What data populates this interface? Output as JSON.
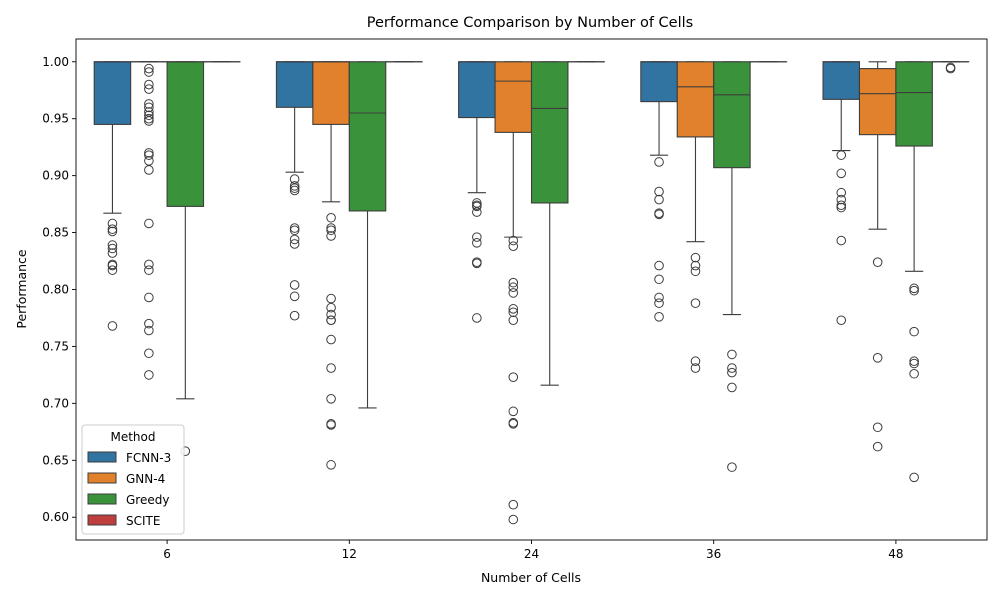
{
  "chart_data": {
    "type": "box",
    "title": "Performance Comparison by Number of Cells",
    "xlabel": "Number of Cells",
    "ylabel": "Performance",
    "ylim": [
      0.58,
      1.02
    ],
    "yticks": [
      0.6,
      0.65,
      0.7,
      0.75,
      0.8,
      0.85,
      0.9,
      0.95,
      1.0
    ],
    "ytick_labels": [
      "0.60",
      "0.65",
      "0.70",
      "0.75",
      "0.80",
      "0.85",
      "0.90",
      "0.95",
      "1.00"
    ],
    "categories": [
      "6",
      "12",
      "24",
      "36",
      "48"
    ],
    "grid": false,
    "legend": {
      "title": "Method",
      "placement": "lower-left"
    },
    "series": [
      {
        "name": "FCNN-3",
        "color": "#3274a1",
        "boxes": [
          {
            "whislo": 0.867,
            "q1": 0.945,
            "med": 1.0,
            "q3": 1.0,
            "whishi": 1.0,
            "fliers": [
              0.858,
              0.853,
              0.851,
              0.839,
              0.836,
              0.832,
              0.822,
              0.821,
              0.817,
              0.768
            ]
          },
          {
            "whislo": 0.903,
            "q1": 0.96,
            "med": 1.0,
            "q3": 1.0,
            "whishi": 1.0,
            "fliers": [
              0.897,
              0.891,
              0.889,
              0.887,
              0.854,
              0.852,
              0.844,
              0.84,
              0.804,
              0.794,
              0.777
            ]
          },
          {
            "whislo": 0.885,
            "q1": 0.951,
            "med": 1.0,
            "q3": 1.0,
            "whishi": 1.0,
            "fliers": [
              0.876,
              0.874,
              0.873,
              0.868,
              0.846,
              0.841,
              0.824,
              0.823,
              0.775
            ]
          },
          {
            "whislo": 0.918,
            "q1": 0.965,
            "med": 1.0,
            "q3": 1.0,
            "whishi": 1.0,
            "fliers": [
              0.912,
              0.886,
              0.879,
              0.867,
              0.866,
              0.821,
              0.809,
              0.793,
              0.788,
              0.776
            ]
          },
          {
            "whislo": 0.922,
            "q1": 0.967,
            "med": 1.0,
            "q3": 1.0,
            "whishi": 1.0,
            "fliers": [
              0.918,
              0.902,
              0.885,
              0.879,
              0.874,
              0.872,
              0.843,
              0.773
            ]
          }
        ]
      },
      {
        "name": "GNN-4",
        "color": "#e1812c",
        "boxes": [
          {
            "whislo": 1.0,
            "q1": 1.0,
            "med": 1.0,
            "q3": 1.0,
            "whishi": 1.0,
            "fliers": [
              0.994,
              0.991,
              0.98,
              0.976,
              0.963,
              0.96,
              0.956,
              0.953,
              0.95,
              0.948,
              0.92,
              0.918,
              0.913,
              0.905,
              0.858,
              0.822,
              0.817,
              0.793,
              0.77,
              0.764,
              0.744,
              0.725
            ]
          },
          {
            "whislo": 0.877,
            "q1": 0.945,
            "med": 1.0,
            "q3": 1.0,
            "whishi": 1.0,
            "fliers": [
              0.863,
              0.854,
              0.852,
              0.847,
              0.792,
              0.784,
              0.778,
              0.773,
              0.773,
              0.756,
              0.731,
              0.704,
              0.682,
              0.681,
              0.646
            ]
          },
          {
            "whislo": 0.846,
            "q1": 0.938,
            "med": 0.983,
            "q3": 1.0,
            "whishi": 1.0,
            "fliers": [
              0.843,
              0.838,
              0.806,
              0.802,
              0.797,
              0.783,
              0.78,
              0.773,
              0.723,
              0.693,
              0.683,
              0.682,
              0.611,
              0.598
            ]
          },
          {
            "whislo": 0.842,
            "q1": 0.934,
            "med": 0.978,
            "q3": 1.0,
            "whishi": 1.0,
            "fliers": [
              0.828,
              0.821,
              0.816,
              0.788,
              0.737,
              0.731
            ]
          },
          {
            "whislo": 0.853,
            "q1": 0.936,
            "med": 0.972,
            "q3": 0.994,
            "whishi": 1.0,
            "fliers": [
              0.824,
              0.74,
              0.679,
              0.662
            ]
          }
        ]
      },
      {
        "name": "Greedy",
        "color": "#3a923a",
        "boxes": [
          {
            "whislo": 0.704,
            "q1": 0.873,
            "med": 1.0,
            "q3": 1.0,
            "whishi": 1.0,
            "fliers": [
              0.658
            ]
          },
          {
            "whislo": 0.696,
            "q1": 0.869,
            "med": 0.955,
            "q3": 1.0,
            "whishi": 1.0,
            "fliers": []
          },
          {
            "whislo": 0.716,
            "q1": 0.876,
            "med": 0.959,
            "q3": 1.0,
            "whishi": 1.0,
            "fliers": []
          },
          {
            "whislo": 0.778,
            "q1": 0.907,
            "med": 0.971,
            "q3": 1.0,
            "whishi": 1.0,
            "fliers": [
              0.743,
              0.731,
              0.727,
              0.714,
              0.644
            ]
          },
          {
            "whislo": 0.816,
            "q1": 0.926,
            "med": 0.973,
            "q3": 1.0,
            "whishi": 1.0,
            "fliers": [
              0.801,
              0.799,
              0.763,
              0.737,
              0.735,
              0.726,
              0.635
            ]
          }
        ]
      },
      {
        "name": "SCITE",
        "color": "#c03d3e",
        "boxes": [
          {
            "whislo": 1.0,
            "q1": 1.0,
            "med": 1.0,
            "q3": 1.0,
            "whishi": 1.0,
            "fliers": []
          },
          {
            "whislo": 1.0,
            "q1": 1.0,
            "med": 1.0,
            "q3": 1.0,
            "whishi": 1.0,
            "fliers": []
          },
          {
            "whislo": 1.0,
            "q1": 1.0,
            "med": 1.0,
            "q3": 1.0,
            "whishi": 1.0,
            "fliers": []
          },
          {
            "whislo": 1.0,
            "q1": 1.0,
            "med": 1.0,
            "q3": 1.0,
            "whishi": 1.0,
            "fliers": []
          },
          {
            "whislo": 1.0,
            "q1": 1.0,
            "med": 1.0,
            "q3": 1.0,
            "whishi": 1.0,
            "fliers": [
              0.995,
              0.994
            ]
          }
        ]
      }
    ]
  }
}
